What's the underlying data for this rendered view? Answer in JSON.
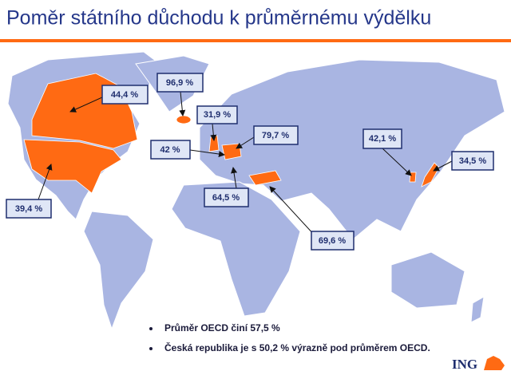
{
  "title": "Poměr státního důchodu k průměrnému výdělku",
  "callouts": [
    {
      "label": "44,4 %"
    },
    {
      "label": "96,9 %"
    },
    {
      "label": "31,9 %"
    },
    {
      "label": "79,7 %"
    },
    {
      "label": "42 %"
    },
    {
      "label": "64,5 %"
    },
    {
      "label": "69,6 %"
    },
    {
      "label": "42,1 %"
    },
    {
      "label": "34,5 %"
    },
    {
      "label": "39,4 %"
    }
  ],
  "bullets": [
    "Průměr OECD činí 57,5 %",
    "Česká republika je s 50,2 % výrazně pod průměrem OECD."
  ],
  "logo": "ING"
}
